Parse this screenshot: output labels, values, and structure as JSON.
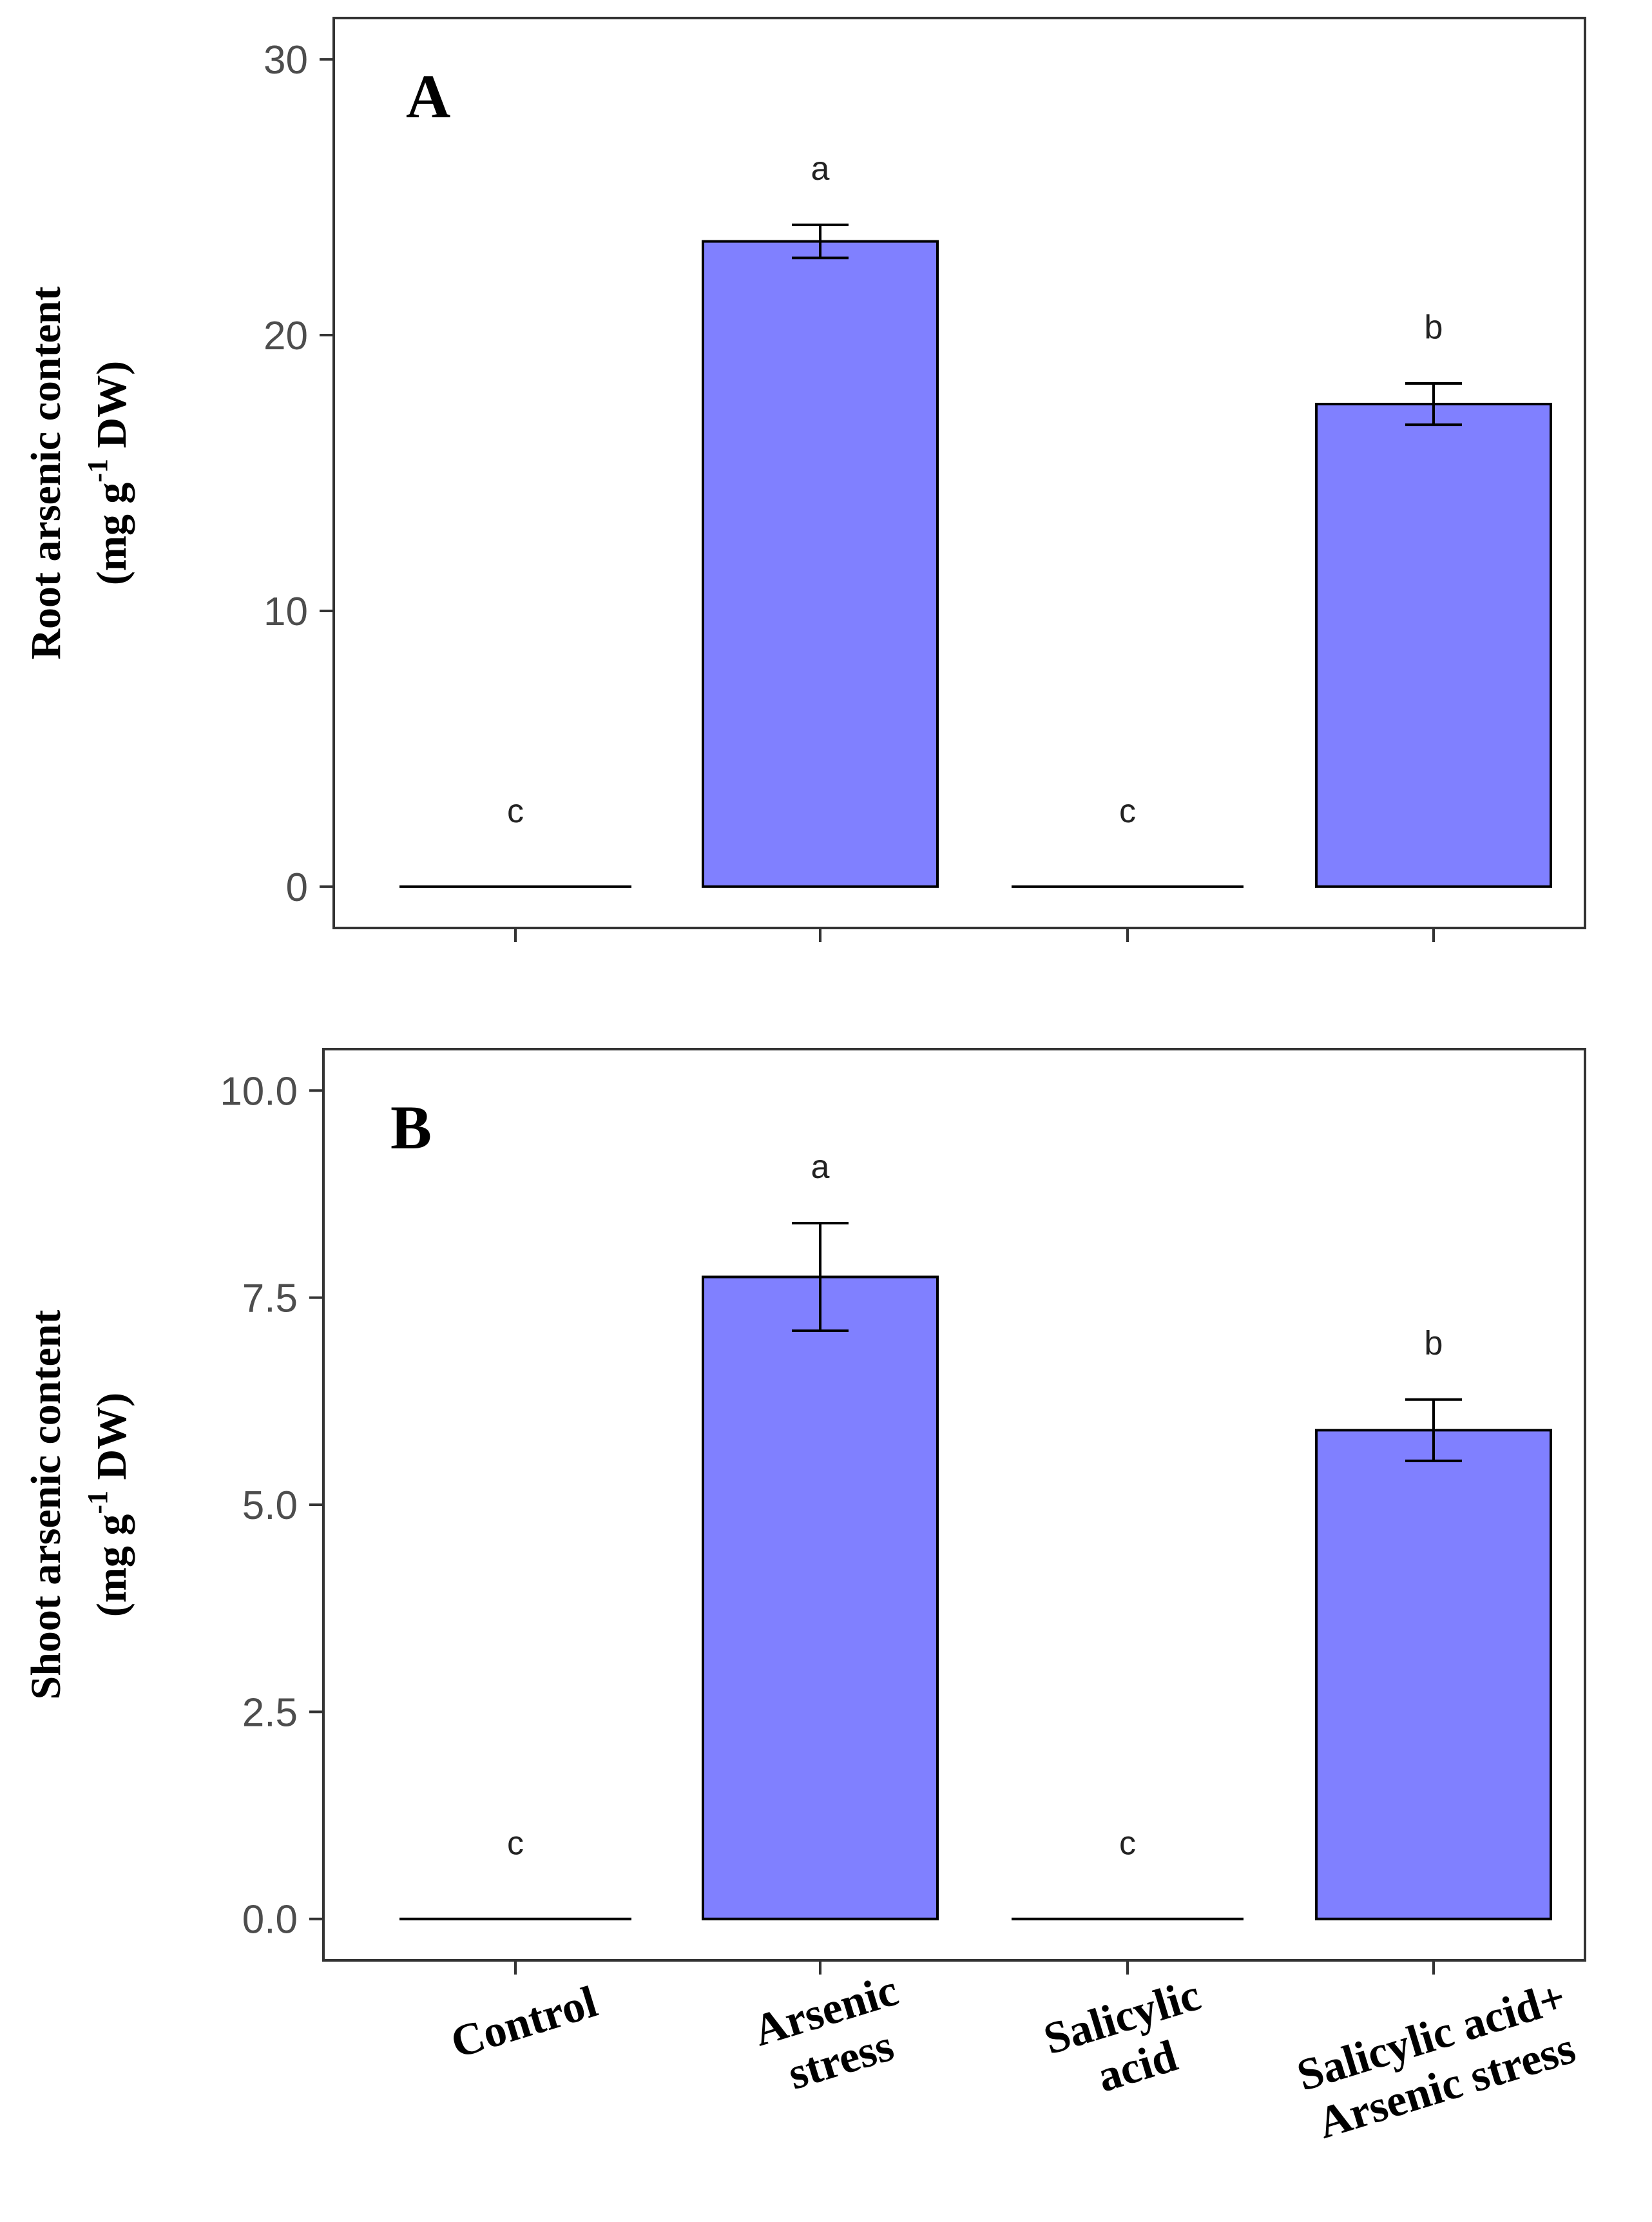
{
  "colors": {
    "bar": "#8080ff",
    "frame": "#333333",
    "tick_text": "#4d4d4d"
  },
  "categories": [
    [
      "Control"
    ],
    [
      "Arsenic",
      "stress"
    ],
    [
      "Salicylic",
      "acid"
    ],
    [
      "Salicylic acid+",
      "Arsenic stress"
    ]
  ],
  "chart_data": [
    {
      "type": "bar",
      "panel": "A",
      "ylabel": [
        "Root arsenic content",
        "(mg g",
        "-1",
        " DW)"
      ],
      "ylim": [
        -1.5,
        31.5
      ],
      "yticks": [
        0,
        10,
        20,
        30
      ],
      "ytick_labels": [
        "0",
        "10",
        "20",
        "30"
      ],
      "values": [
        0,
        23.4,
        0,
        17.5
      ],
      "errors": [
        0,
        0.6,
        0,
        0.75
      ],
      "letters": [
        "c",
        "a",
        "c",
        "b"
      ],
      "show_xlabels": false
    },
    {
      "type": "bar",
      "panel": "B",
      "ylabel": [
        "Shoot arsenic content",
        "(mg g",
        "-1",
        " DW)"
      ],
      "ylim": [
        -0.5,
        10.5
      ],
      "yticks": [
        0,
        2.5,
        5,
        7.5,
        10
      ],
      "ytick_labels": [
        "0.0",
        "2.5",
        "5.0",
        "7.5",
        "10.0"
      ],
      "values": [
        0,
        7.75,
        0,
        5.9
      ],
      "errors": [
        0,
        0.65,
        0,
        0.37
      ],
      "letters": [
        "c",
        "a",
        "c",
        "b"
      ],
      "show_xlabels": true
    }
  ]
}
